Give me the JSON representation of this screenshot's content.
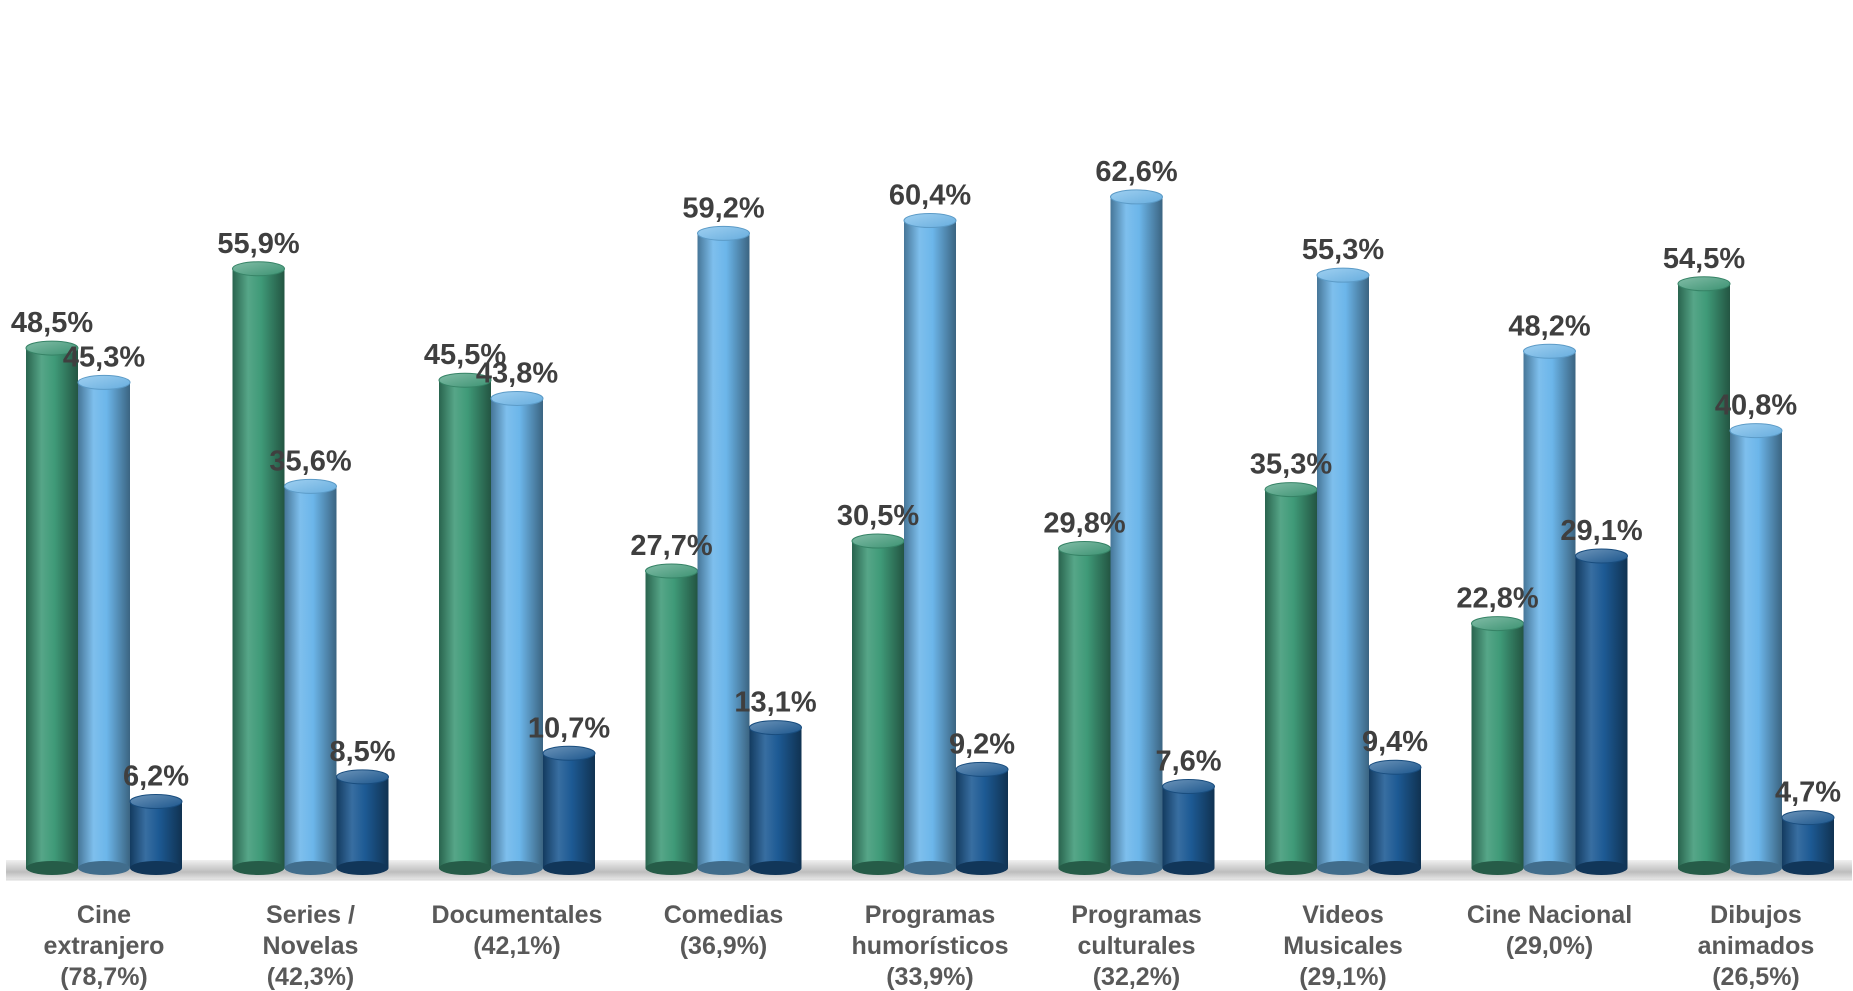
{
  "chart_data": {
    "type": "bar",
    "style": "3d-cylinder",
    "title": "",
    "xlabel": "",
    "ylabel": "",
    "ylim": [
      0,
      65
    ],
    "grid": false,
    "legend": "none",
    "categories": [
      [
        "Cine",
        "extranjero",
        "(78,7%)"
      ],
      [
        "Series /",
        "Novelas",
        "(42,3%)"
      ],
      [
        "Documentales",
        "(42,1%)"
      ],
      [
        "Comedias",
        "(36,9%)"
      ],
      [
        "Programas",
        "humorísticos",
        "(33,9%)"
      ],
      [
        "Programas",
        "culturales",
        "(32,2%)"
      ],
      [
        "Videos",
        "Musicales",
        "(29,1%)"
      ],
      [
        "Cine Nacional",
        "(29,0%)"
      ],
      [
        "Dibujos",
        "animados",
        "(26,5%)"
      ]
    ],
    "series": [
      {
        "color": "#3f9a78",
        "values": [
          48.5,
          55.9,
          45.5,
          27.7,
          30.5,
          29.8,
          35.3,
          22.8,
          54.5
        ],
        "labels": [
          "48,5%",
          "55,9%",
          "45,5%",
          "27,7%",
          "30,5%",
          "29,8%",
          "35,3%",
          "22,8%",
          "54,5%"
        ]
      },
      {
        "color": "#6cb6ea",
        "values": [
          45.3,
          35.6,
          43.8,
          59.2,
          60.4,
          62.6,
          55.3,
          48.2,
          40.8
        ],
        "labels": [
          "45,3%",
          "35,6%",
          "43,8%",
          "59,2%",
          "60,4%",
          "62,6%",
          "55,3%",
          "48,2%",
          "40,8%"
        ]
      },
      {
        "color": "#1d5a94",
        "values": [
          6.2,
          8.5,
          10.7,
          13.1,
          9.2,
          7.6,
          9.4,
          29.1,
          4.7
        ],
        "labels": [
          "6,2%",
          "8,5%",
          "10,7%",
          "13,1%",
          "9,2%",
          "7,6%",
          "9,4%",
          "29,1%",
          "4,7%"
        ]
      }
    ]
  }
}
